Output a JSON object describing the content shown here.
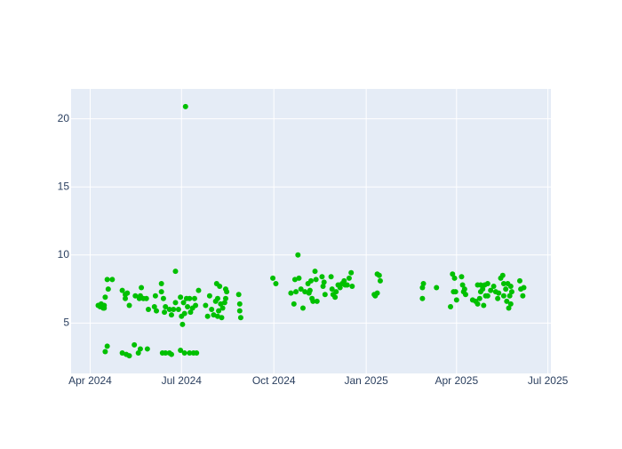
{
  "chart_data": {
    "type": "scatter",
    "color": "#00c000",
    "grid": true,
    "xlim": [
      "2024-03-13",
      "2025-07-04"
    ],
    "ylim": [
      1.3,
      22.2
    ],
    "xticks": [
      {
        "value": "2024-04-01",
        "label": "Apr 2024"
      },
      {
        "value": "2024-07-01",
        "label": "Jul 2024"
      },
      {
        "value": "2024-10-01",
        "label": "Oct 2024"
      },
      {
        "value": "2025-01-01",
        "label": "Jan 2025"
      },
      {
        "value": "2025-04-01",
        "label": "Apr 2025"
      },
      {
        "value": "2025-07-01",
        "label": "Jul 2025"
      }
    ],
    "yticks": [
      5,
      10,
      15,
      20
    ],
    "x": [
      "2024-04-09",
      "2024-04-11",
      "2024-04-12",
      "2024-04-14",
      "2024-04-15",
      "2024-04-15",
      "2024-04-16",
      "2024-04-18",
      "2024-04-19",
      "2024-04-23",
      "2024-04-16",
      "2024-04-18",
      "2024-05-03",
      "2024-05-06",
      "2024-05-06",
      "2024-05-08",
      "2024-05-10",
      "2024-05-16",
      "2024-05-20",
      "2024-05-21",
      "2024-05-22",
      "2024-05-24",
      "2024-05-27",
      "2024-05-29",
      "2024-05-03",
      "2024-05-07",
      "2024-05-10",
      "2024-05-15",
      "2024-05-19",
      "2024-05-21",
      "2024-05-28",
      "2024-06-04",
      "2024-06-06",
      "2024-06-05",
      "2024-06-11",
      "2024-06-11",
      "2024-06-13",
      "2024-06-14",
      "2024-06-15",
      "2024-06-19",
      "2024-06-21",
      "2024-06-23",
      "2024-06-25",
      "2024-06-25",
      "2024-06-28",
      "2024-06-30",
      "2024-07-01",
      "2024-07-02",
      "2024-07-03",
      "2024-07-04",
      "2024-07-05",
      "2024-07-06",
      "2024-07-07",
      "2024-07-09",
      "2024-07-10",
      "2024-07-12",
      "2024-07-14",
      "2024-07-15",
      "2024-07-18",
      "2024-06-12",
      "2024-06-15",
      "2024-06-19",
      "2024-06-21",
      "2024-06-30",
      "2024-07-04",
      "2024-07-09",
      "2024-07-13",
      "2024-07-16",
      "2024-07-25",
      "2024-07-27",
      "2024-07-29",
      "2024-07-31",
      "2024-08-02",
      "2024-08-04",
      "2024-08-05",
      "2024-08-06",
      "2024-08-06",
      "2024-08-07",
      "2024-08-08",
      "2024-08-09",
      "2024-08-10",
      "2024-08-11",
      "2024-08-13",
      "2024-08-14",
      "2024-08-14",
      "2024-08-15",
      "2024-08-27",
      "2024-08-28",
      "2024-08-28",
      "2024-08-29",
      "2024-09-30",
      "2024-10-03",
      "2024-10-18",
      "2024-10-21",
      "2024-10-22",
      "2024-10-23",
      "2024-10-25",
      "2024-10-26",
      "2024-10-28",
      "2024-10-30",
      "2024-11-01",
      "2024-11-04",
      "2024-11-05",
      "2024-11-06",
      "2024-11-07",
      "2024-11-08",
      "2024-11-09",
      "2024-11-11",
      "2024-11-12",
      "2024-11-13",
      "2024-11-18",
      "2024-11-19",
      "2024-11-20",
      "2024-11-21",
      "2024-11-27",
      "2024-11-28",
      "2024-11-29",
      "2024-12-01",
      "2024-12-02",
      "2024-12-04",
      "2024-12-06",
      "2024-12-08",
      "2024-12-10",
      "2024-12-11",
      "2024-12-13",
      "2024-12-15",
      "2024-12-17",
      "2024-12-18",
      "2025-01-09",
      "2025-01-10",
      "2025-01-12",
      "2025-01-12",
      "2025-01-14",
      "2025-01-15",
      "2025-02-26",
      "2025-02-27",
      "2025-02-26",
      "2025-03-12",
      "2025-03-26",
      "2025-03-28",
      "2025-03-29",
      "2025-03-30",
      "2025-03-31",
      "2025-04-01",
      "2025-04-06",
      "2025-04-07",
      "2025-04-08",
      "2025-04-09",
      "2025-04-10",
      "2025-04-17",
      "2025-04-20",
      "2025-04-22",
      "2025-04-22",
      "2025-04-24",
      "2025-04-25",
      "2025-04-25",
      "2025-04-27",
      "2025-04-28",
      "2025-04-29",
      "2025-04-30",
      "2025-05-02",
      "2025-05-02",
      "2025-05-05",
      "2025-05-08",
      "2025-05-10",
      "2025-05-12",
      "2025-05-13",
      "2025-05-15",
      "2025-05-17",
      "2025-05-18",
      "2025-05-18",
      "2025-05-20",
      "2025-05-21",
      "2025-05-22",
      "2025-05-23",
      "2025-05-24",
      "2025-05-25",
      "2025-05-25",
      "2025-05-26",
      "2025-06-03",
      "2025-06-04",
      "2025-06-06",
      "2025-06-07"
    ],
    "values": [
      6.3,
      6.2,
      6.4,
      6.1,
      6.3,
      6.1,
      6.9,
      8.2,
      7.5,
      8.2,
      2.9,
      3.3,
      7.4,
      7.1,
      6.8,
      7.2,
      6.3,
      7.0,
      6.8,
      7.0,
      7.6,
      6.8,
      6.8,
      6.0,
      2.8,
      2.7,
      2.6,
      3.4,
      2.8,
      3.1,
      3.1,
      6.2,
      5.9,
      7.0,
      7.9,
      7.3,
      6.8,
      5.8,
      6.2,
      6.0,
      5.6,
      6.0,
      8.8,
      6.5,
      6.0,
      6.9,
      5.5,
      4.9,
      6.5,
      5.7,
      20.9,
      6.8,
      6.2,
      6.8,
      5.8,
      6.1,
      6.8,
      6.3,
      7.4,
      2.8,
      2.8,
      2.8,
      2.7,
      3.0,
      2.8,
      2.8,
      2.8,
      2.8,
      6.3,
      5.5,
      7.0,
      6.0,
      5.6,
      6.6,
      7.9,
      5.5,
      6.8,
      5.9,
      7.7,
      6.4,
      5.4,
      6.1,
      6.5,
      7.5,
      6.8,
      7.3,
      7.1,
      6.4,
      5.9,
      5.4,
      8.3,
      7.9,
      7.2,
      6.4,
      8.2,
      7.3,
      10.0,
      8.3,
      7.5,
      6.1,
      7.3,
      7.9,
      7.2,
      7.4,
      8.1,
      6.8,
      6.6,
      8.8,
      8.2,
      6.6,
      8.4,
      7.7,
      8.0,
      7.1,
      8.4,
      7.5,
      7.1,
      6.9,
      7.3,
      7.8,
      7.6,
      7.9,
      8.1,
      7.8,
      7.8,
      8.3,
      8.7,
      7.7,
      7.1,
      7.0,
      7.2,
      8.6,
      8.5,
      8.1,
      7.6,
      7.9,
      6.8,
      7.6,
      6.2,
      8.6,
      7.3,
      8.3,
      7.3,
      6.7,
      8.4,
      7.8,
      7.3,
      7.5,
      7.1,
      6.7,
      6.6,
      6.4,
      7.8,
      6.8,
      7.8,
      7.3,
      7.5,
      6.3,
      7.8,
      7.0,
      7.9,
      7.0,
      7.4,
      7.7,
      7.3,
      6.8,
      7.2,
      8.3,
      8.5,
      7.0,
      7.9,
      7.5,
      6.6,
      7.9,
      6.1,
      7.0,
      7.7,
      6.4,
      7.3,
      8.1,
      7.5,
      7.0,
      7.6
    ]
  }
}
